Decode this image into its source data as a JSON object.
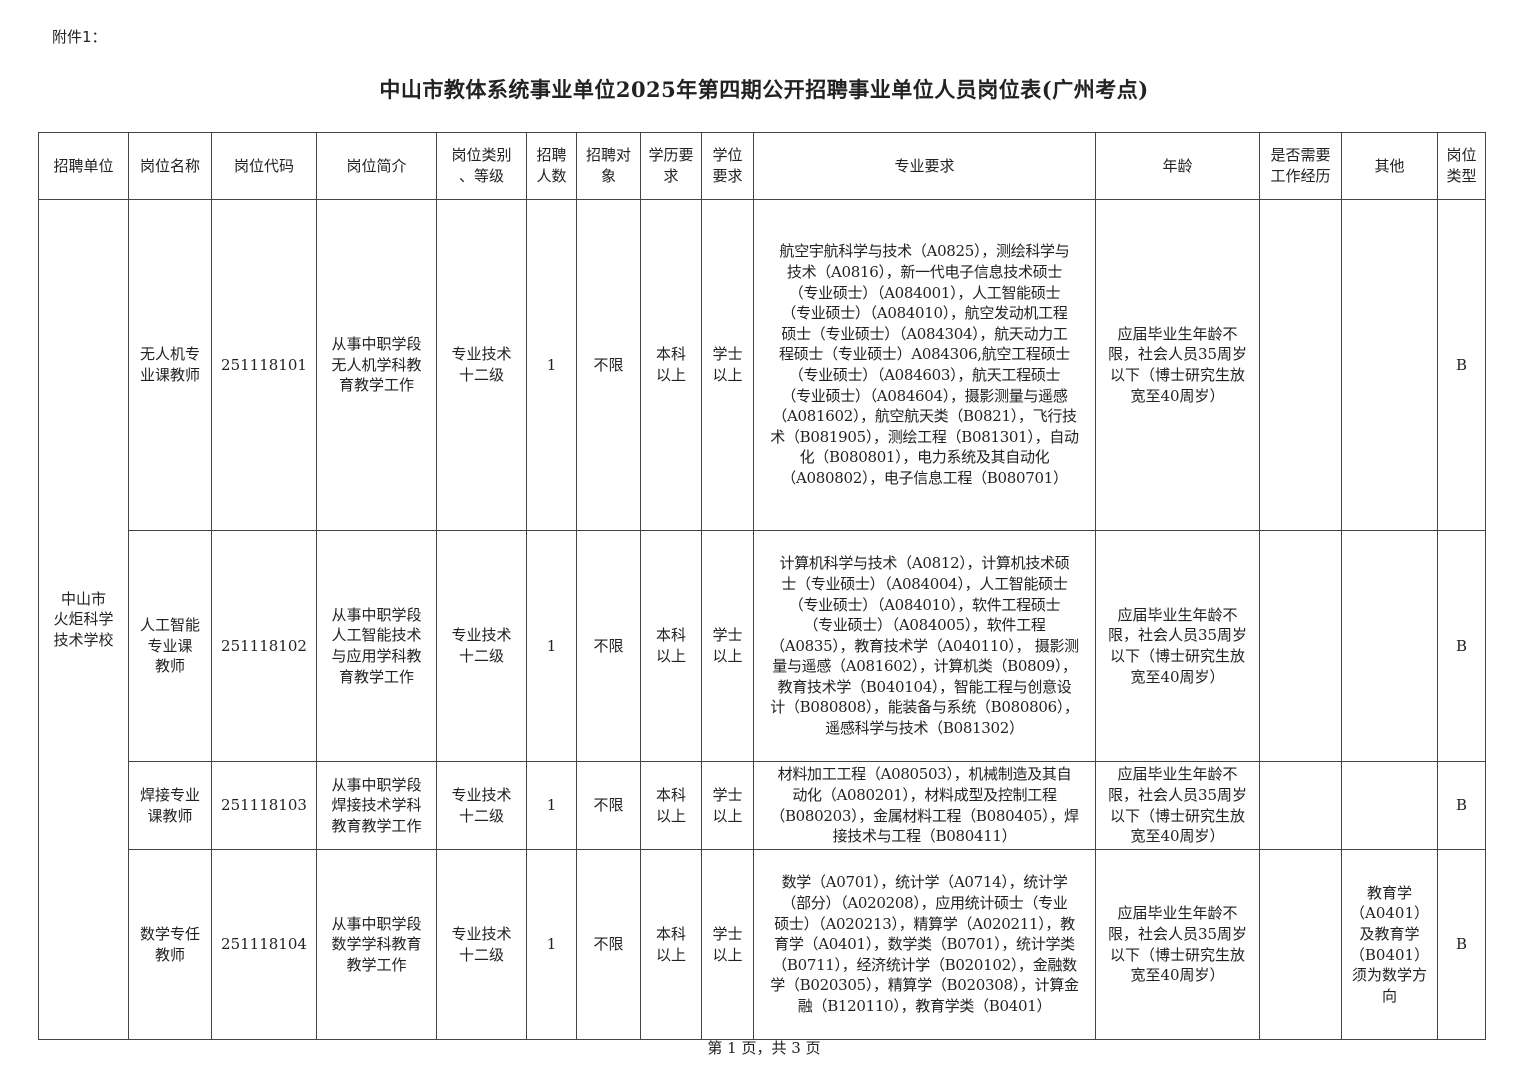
{
  "attachment_label": "附件1：",
  "title": "中山市教体系统事业单位2025年第四期公开招聘事业单位人员岗位表(广州考点)",
  "headers": [
    "招聘单位",
    "岗位名称",
    "岗位代码",
    "岗位简介",
    "岗位类别\n、等级",
    "招聘\n人数",
    "招聘对\n象",
    "学历要\n求",
    "学位\n要求",
    "专业要求",
    "年龄",
    "是否需要\n工作经历",
    "其他",
    "岗位\n类型"
  ],
  "unit": "中山市\n火炬科学\n技术学校",
  "rows": [
    {
      "name": "无人机专\n业课教师",
      "code": "251118101",
      "intro": "从事中职学段\n无人机学科教\n育教学工作",
      "category": "专业技术\n十二级",
      "count": "1",
      "target": "不限",
      "education": "本科\n以上",
      "degree": "学士\n以上",
      "major": "航空宇航科学与技术（A0825），测绘科学与\n技术（A0816），新一代电子信息技术硕士\n（专业硕士）（A084001），人工智能硕士\n（专业硕士）（A084010），航空发动机工程\n硕士（专业硕士）（A084304），航天动力工\n程硕士（专业硕士）A084306,航空工程硕士\n（专业硕士）（A084603），航天工程硕士\n（专业硕士）（A084604），摄影测量与遥感\n（A081602），航空航天类（B0821），飞行技\n术（B081905），测绘工程（B081301），自动\n化（B080801），电力系统及其自动化\n（A080802），电子信息工程（B080701）",
      "age": "应届毕业生年龄不\n限，社会人员35周岁\n以下（博士研究生放\n宽至40周岁）",
      "experience": "",
      "other": "",
      "type": "B"
    },
    {
      "name": "人工智能\n专业课\n教师",
      "code": "251118102",
      "intro": "从事中职学段\n人工智能技术\n与应用学科教\n育教学工作",
      "category": "专业技术\n十二级",
      "count": "1",
      "target": "不限",
      "education": "本科\n以上",
      "degree": "学士\n以上",
      "major": "计算机科学与技术（A0812），计算机技术硕\n士（专业硕士）（A084004），人工智能硕士\n（专业硕士）（A084010），软件工程硕士\n（专业硕士）（A084005），软件工程\n（A0835），教育技术学（A040110）， 摄影测\n量与遥感（A081602），计算机类（B0809），\n教育技术学（B040104），智能工程与创意设\n计（B080808），能装备与系统（B080806），\n遥感科学与技术（B081302）",
      "age": "应届毕业生年龄不\n限，社会人员35周岁\n以下（博士研究生放\n宽至40周岁）",
      "experience": "",
      "other": "",
      "type": "B"
    },
    {
      "name": "焊接专业\n课教师",
      "code": "251118103",
      "intro": "从事中职学段\n焊接技术学科\n教育教学工作",
      "category": "专业技术\n十二级",
      "count": "1",
      "target": "不限",
      "education": "本科\n以上",
      "degree": "学士\n以上",
      "major": "材料加工工程（A080503），机械制造及其自\n动化（A080201），材料成型及控制工程\n（B080203），金属材料工程（B080405），焊\n接技术与工程（B080411）",
      "age": "应届毕业生年龄不\n限，社会人员35周岁\n以下（博士研究生放\n宽至40周岁）",
      "experience": "",
      "other": "",
      "type": "B"
    },
    {
      "name": "数学专任\n教师",
      "code": "251118104",
      "intro": "从事中职学段\n数学学科教育\n教学工作",
      "category": "专业技术\n十二级",
      "count": "1",
      "target": "不限",
      "education": "本科\n以上",
      "degree": "学士\n以上",
      "major": "数学（A0701），统计学（A0714），统计学\n（部分）（A020208），应用统计硕士（专业\n硕士）（A020213），精算学（A020211），教\n育学（A0401），数学类（B0701），统计学类\n（B0711），经济统计学（B020102），金融数\n学（B020305），精算学（B020308），计算金\n融（B120110），教育学类（B0401）",
      "age": "应届毕业生年龄不\n限，社会人员35周岁\n以下（博士研究生放\n宽至40周岁）",
      "experience": "",
      "other": "教育学\n（A0401）\n及教育学\n（B0401）\n须为数学方\n向",
      "type": "B"
    }
  ],
  "footer": "第 1 页，共 3 页"
}
